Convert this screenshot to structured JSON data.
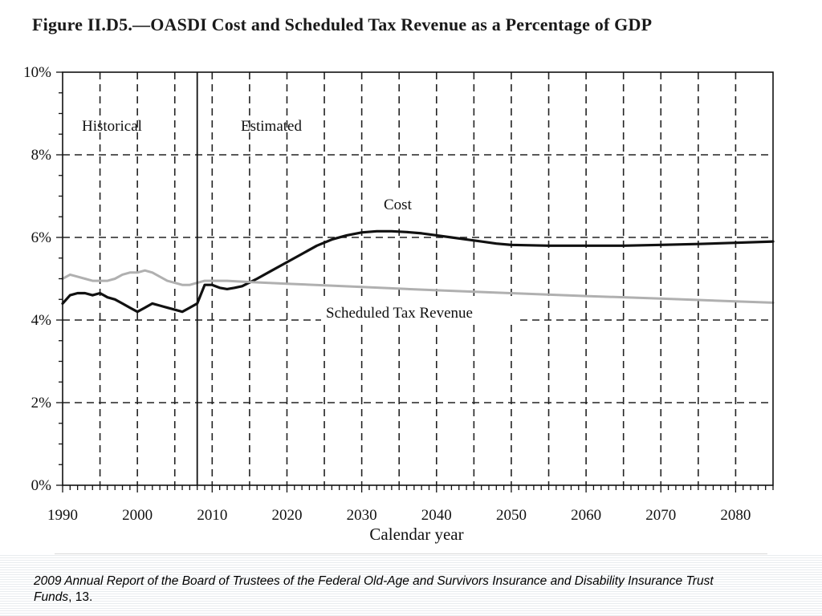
{
  "chart_data": {
    "type": "line",
    "title": "Figure II.D5.—OASDI Cost and Scheduled Tax Revenue as a Percentage of GDP",
    "xlabel": "Calendar year",
    "ylabel": "",
    "xlim": [
      1990,
      2085
    ],
    "ylim": [
      0,
      10
    ],
    "y_ticks": [
      "0%",
      "2%",
      "4%",
      "6%",
      "8%",
      "10%"
    ],
    "x_ticks": [
      "1990",
      "2000",
      "2010",
      "2020",
      "2030",
      "2040",
      "2050",
      "2060",
      "2070",
      "2080"
    ],
    "grid": true,
    "divider_year": 2008,
    "annotations": {
      "historical": "Historical",
      "estimated": "Estimated",
      "cost": "Cost",
      "tax": "Scheduled Tax Revenue"
    },
    "series": [
      {
        "name": "Cost",
        "color": "#111111",
        "points": [
          [
            1990,
            4.4
          ],
          [
            1991,
            4.6
          ],
          [
            1992,
            4.65
          ],
          [
            1993,
            4.65
          ],
          [
            1994,
            4.6
          ],
          [
            1995,
            4.65
          ],
          [
            1996,
            4.55
          ],
          [
            1997,
            4.5
          ],
          [
            1998,
            4.4
          ],
          [
            1999,
            4.3
          ],
          [
            2000,
            4.2
          ],
          [
            2001,
            4.3
          ],
          [
            2002,
            4.4
          ],
          [
            2003,
            4.35
          ],
          [
            2004,
            4.3
          ],
          [
            2005,
            4.25
          ],
          [
            2006,
            4.2
          ],
          [
            2007,
            4.3
          ],
          [
            2008,
            4.4
          ],
          [
            2009,
            4.85
          ],
          [
            2010,
            4.85
          ],
          [
            2011,
            4.78
          ],
          [
            2012,
            4.75
          ],
          [
            2013,
            4.78
          ],
          [
            2014,
            4.82
          ],
          [
            2016,
            5.0
          ],
          [
            2018,
            5.2
          ],
          [
            2020,
            5.4
          ],
          [
            2022,
            5.6
          ],
          [
            2024,
            5.8
          ],
          [
            2026,
            5.95
          ],
          [
            2028,
            6.05
          ],
          [
            2030,
            6.12
          ],
          [
            2032,
            6.15
          ],
          [
            2034,
            6.15
          ],
          [
            2036,
            6.13
          ],
          [
            2038,
            6.1
          ],
          [
            2040,
            6.05
          ],
          [
            2042,
            6.0
          ],
          [
            2044,
            5.95
          ],
          [
            2046,
            5.9
          ],
          [
            2048,
            5.85
          ],
          [
            2050,
            5.82
          ],
          [
            2055,
            5.8
          ],
          [
            2060,
            5.8
          ],
          [
            2065,
            5.8
          ],
          [
            2070,
            5.82
          ],
          [
            2075,
            5.84
          ],
          [
            2080,
            5.87
          ],
          [
            2085,
            5.9
          ]
        ]
      },
      {
        "name": "Scheduled Tax Revenue",
        "color": "#b0b0b0",
        "points": [
          [
            1990,
            5.0
          ],
          [
            1991,
            5.1
          ],
          [
            1992,
            5.05
          ],
          [
            1993,
            5.0
          ],
          [
            1994,
            4.95
          ],
          [
            1995,
            4.95
          ],
          [
            1996,
            4.95
          ],
          [
            1997,
            5.0
          ],
          [
            1998,
            5.1
          ],
          [
            1999,
            5.15
          ],
          [
            2000,
            5.15
          ],
          [
            2001,
            5.2
          ],
          [
            2002,
            5.15
          ],
          [
            2003,
            5.05
          ],
          [
            2004,
            4.95
          ],
          [
            2005,
            4.9
          ],
          [
            2006,
            4.85
          ],
          [
            2007,
            4.85
          ],
          [
            2008,
            4.9
          ],
          [
            2009,
            4.95
          ],
          [
            2010,
            4.95
          ],
          [
            2012,
            4.95
          ],
          [
            2015,
            4.92
          ],
          [
            2020,
            4.88
          ],
          [
            2030,
            4.8
          ],
          [
            2040,
            4.72
          ],
          [
            2050,
            4.65
          ],
          [
            2060,
            4.58
          ],
          [
            2070,
            4.52
          ],
          [
            2080,
            4.45
          ],
          [
            2085,
            4.42
          ]
        ]
      }
    ]
  },
  "caption": {
    "italic_text": "2009 Annual Report of the Board of Trustees of the Federal Old-Age and Survivors Insurance and Disability Insurance Trust Funds",
    "plain_text": ", 13."
  }
}
